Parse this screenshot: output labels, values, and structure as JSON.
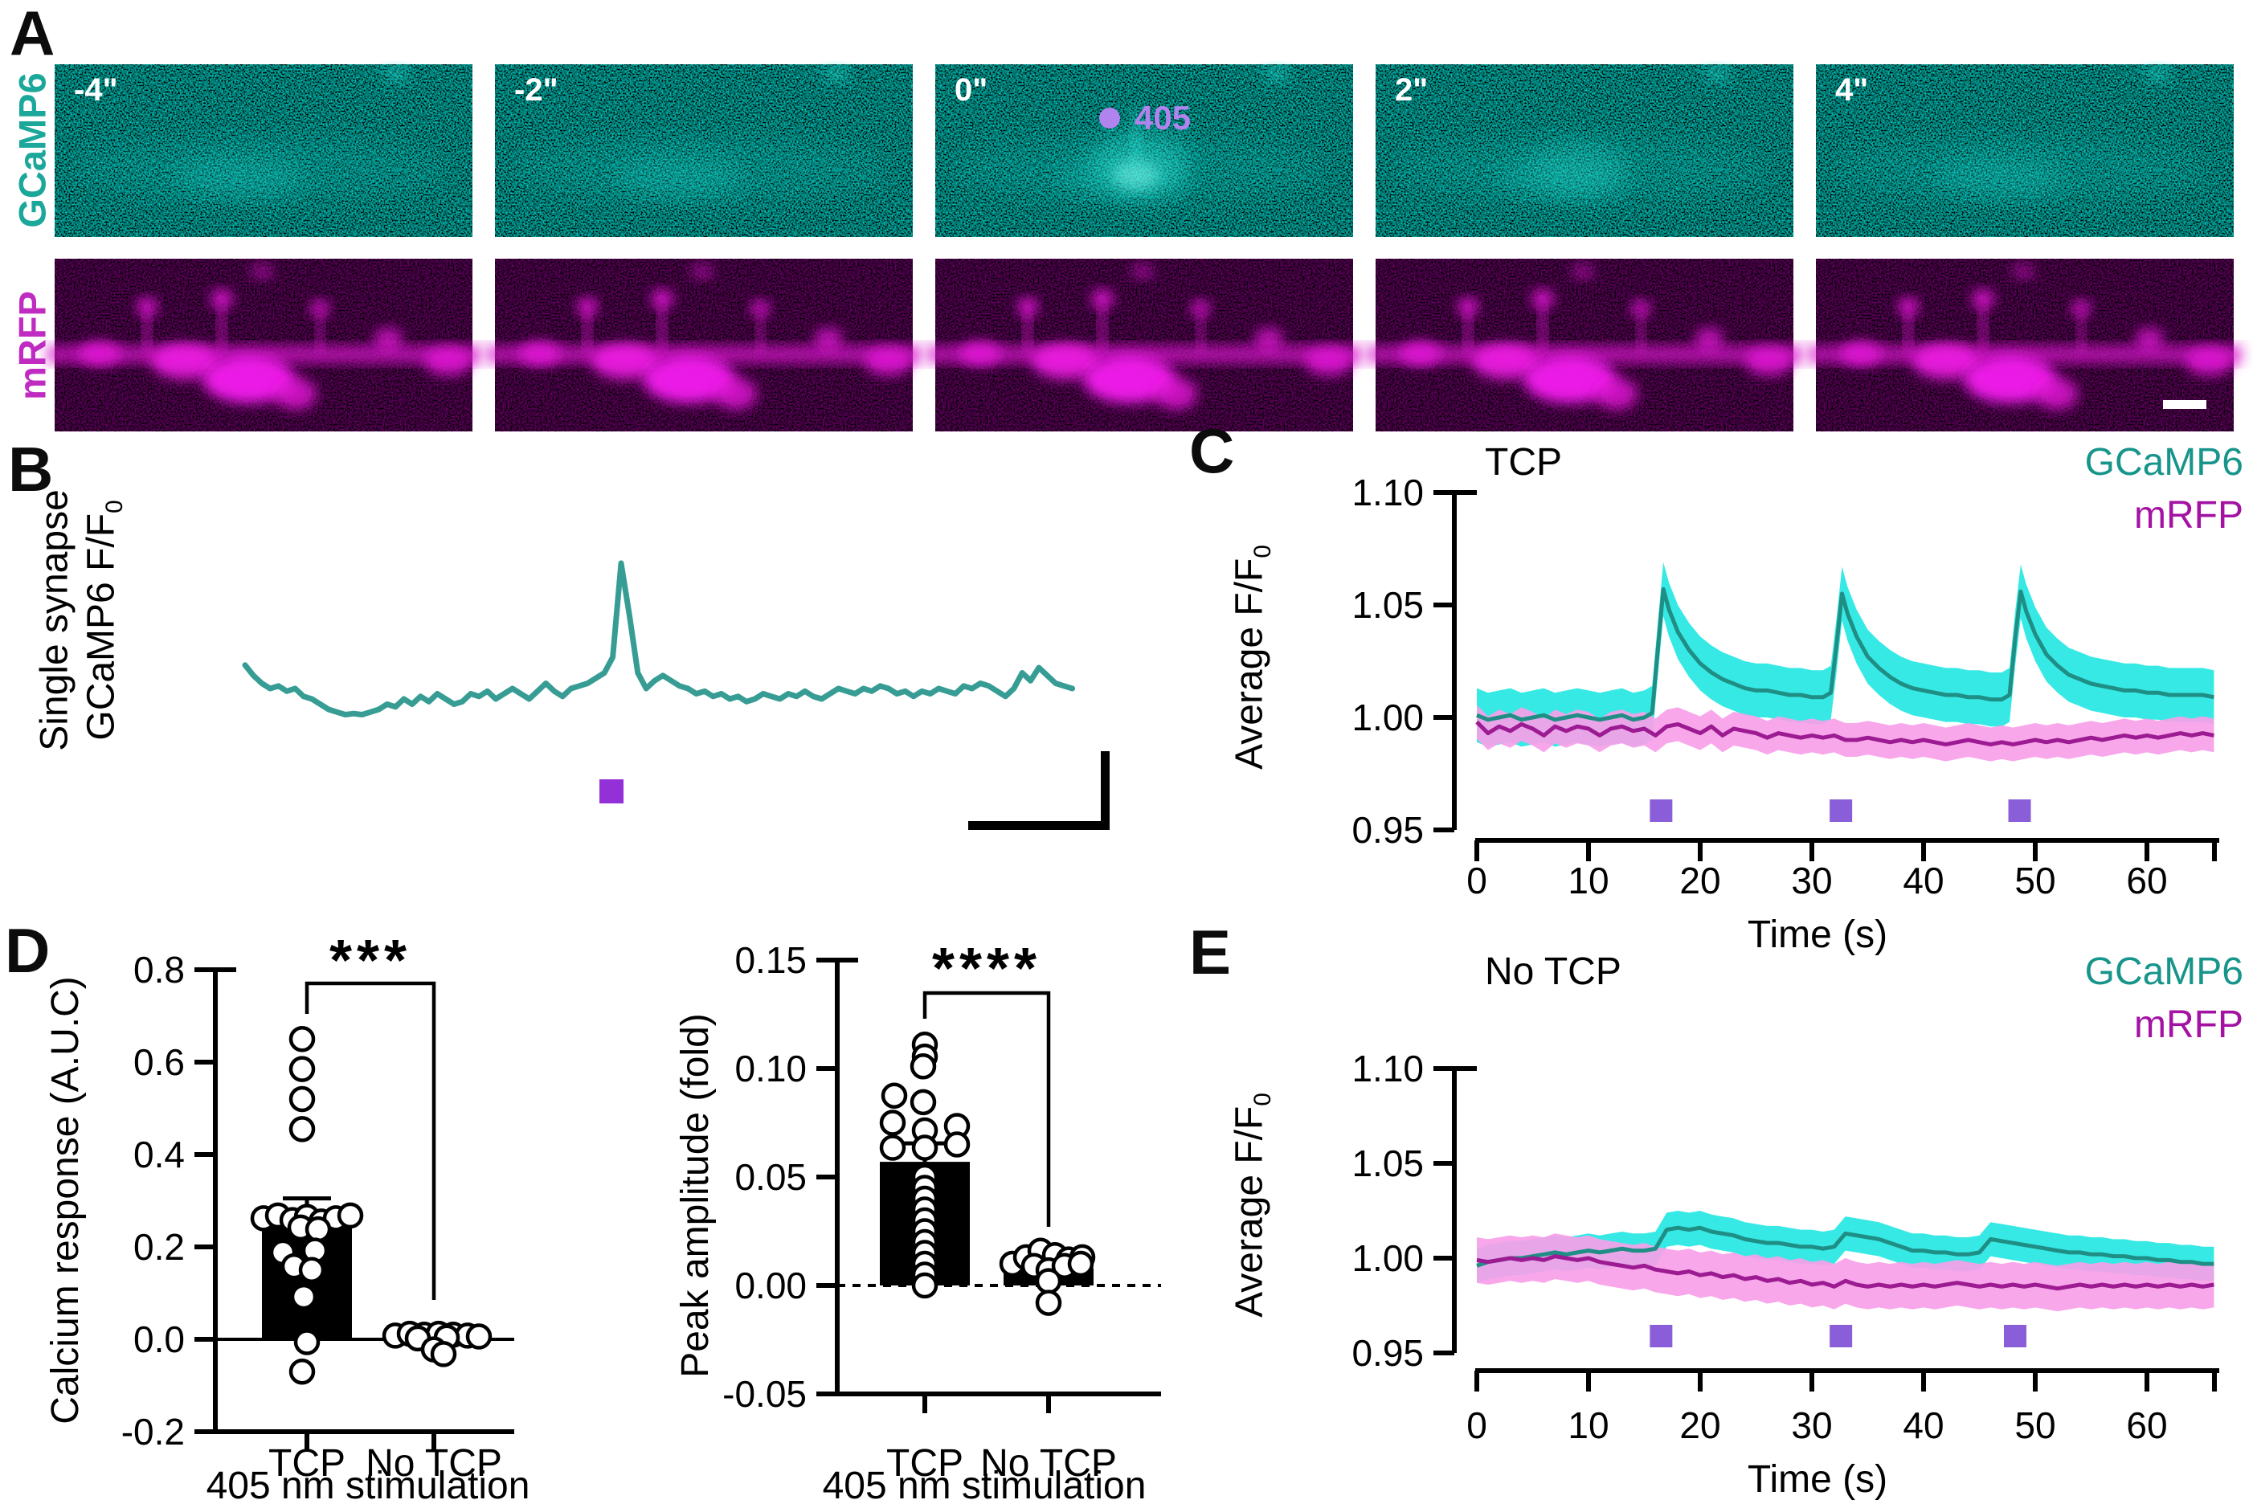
{
  "figure": {
    "panels": {
      "a": {
        "letter": "A",
        "row_labels": [
          {
            "text": "GCaMP6",
            "color": "#1ba79a"
          },
          {
            "text": "mRFP",
            "color": "#c02cc2"
          }
        ],
        "frames": [
          {
            "time": "-4\""
          },
          {
            "time": "-2\""
          },
          {
            "time": "0\""
          },
          {
            "time": "2\""
          },
          {
            "time": "4\""
          }
        ],
        "stim_label": "405"
      },
      "b": {
        "letter": "B",
        "ylabel_line1": "Single synapse",
        "ylabel_line2": "GCaMP6 F/F",
        "ylabel_sub": "0"
      },
      "c": {
        "letter": "C",
        "title": "TCP",
        "legend": [
          {
            "text": "GCaMP6",
            "color": "#17958b"
          },
          {
            "text": "mRFP",
            "color": "#a412a4"
          }
        ],
        "ylabel": "Average F/F",
        "ylabel_sub": "0",
        "xlabel": "Time (s)"
      },
      "d": {
        "letter": "D",
        "significance_left": "***",
        "significance_right": "****",
        "left_ylabel": "Calcium response (A.U.C)",
        "right_ylabel": "Peak amplitude (fold)",
        "left_categories": [
          "TCP",
          "No TCP"
        ],
        "right_categories": [
          "TCP",
          "No TCP"
        ],
        "left_xlabel": "405 nm stimulation",
        "right_xlabel": "405 nm stimulation"
      },
      "e": {
        "letter": "E",
        "title": "No TCP",
        "legend": [
          {
            "text": "GCaMP6",
            "color": "#17958b"
          },
          {
            "text": "mRFP",
            "color": "#a412a4"
          }
        ],
        "ylabel": "Average F/F",
        "ylabel_sub": "0",
        "xlabel": "Time (s)"
      }
    },
    "colors": {
      "teal_line": "#1f8e85",
      "cyan_band": "#26e7e3",
      "magenta_line": "#9c1b92",
      "magenta_band": "#f79fe9",
      "stim_purple": "#8a5ed8",
      "stim_purple_b": "#9330d8",
      "laser_405": "#b183ee"
    }
  },
  "chart_data": [
    {
      "id": "B",
      "type": "line",
      "description": "Single synapse GCaMP6 F/F0 trace, arbitrary scale, photostimulation marker below trace",
      "color": "#379d94",
      "stim_color": "#9330d8",
      "values": [
        1.105,
        1.085,
        1.07,
        1.06,
        1.065,
        1.055,
        1.06,
        1.045,
        1.04,
        1.03,
        1.02,
        1.015,
        1.01,
        1.012,
        1.01,
        1.015,
        1.02,
        1.03,
        1.025,
        1.04,
        1.03,
        1.045,
        1.035,
        1.05,
        1.04,
        1.03,
        1.035,
        1.05,
        1.045,
        1.055,
        1.04,
        1.05,
        1.06,
        1.05,
        1.04,
        1.055,
        1.07,
        1.055,
        1.045,
        1.06,
        1.065,
        1.07,
        1.08,
        1.09,
        1.12,
        1.3,
        1.2,
        1.09,
        1.06,
        1.075,
        1.085,
        1.075,
        1.065,
        1.06,
        1.05,
        1.055,
        1.045,
        1.05,
        1.04,
        1.045,
        1.035,
        1.04,
        1.05,
        1.045,
        1.04,
        1.05,
        1.045,
        1.055,
        1.045,
        1.04,
        1.05,
        1.06,
        1.055,
        1.05,
        1.06,
        1.055,
        1.065,
        1.06,
        1.05,
        1.055,
        1.045,
        1.055,
        1.05,
        1.06,
        1.055,
        1.05,
        1.065,
        1.06,
        1.07,
        1.065,
        1.055,
        1.045,
        1.06,
        1.09,
        1.075,
        1.1,
        1.085,
        1.07,
        1.065,
        1.06
      ]
    },
    {
      "id": "C",
      "type": "line",
      "title": "TCP",
      "xlabel": "Time (s)",
      "ylabel": "Average F/F0",
      "ylim": [
        0.95,
        1.1
      ],
      "yticks": [
        "1.10",
        "1.05",
        "1.00",
        "0.95"
      ],
      "ytick_values": [
        1.1,
        1.05,
        1.0,
        0.95
      ],
      "xticks": [
        "0",
        "10",
        "20",
        "30",
        "40",
        "50",
        "60"
      ],
      "xtick_values": [
        0,
        10,
        20,
        30,
        40,
        50,
        60
      ],
      "legend": [
        "GCaMP6",
        "mRFP"
      ],
      "stim_times": [
        16.5,
        32.6,
        48.6
      ],
      "stim_color": "#8a5ed8",
      "series": [
        {
          "name": "GCaMP6",
          "line_color": "#1f8e85",
          "band_color": "#26e7e3",
          "band": 0.012,
          "x": [
            0,
            1,
            2,
            3,
            4,
            5,
            6,
            7,
            8,
            9,
            10,
            11,
            12,
            13,
            14,
            15,
            15.7,
            16.2,
            16.7,
            17.2,
            18,
            19,
            20,
            21,
            22,
            23,
            24,
            25,
            26,
            27,
            28,
            29,
            30,
            31,
            31.7,
            32.2,
            32.7,
            33.2,
            34,
            35,
            36,
            37,
            38,
            39,
            40,
            41,
            42,
            43,
            44,
            45,
            46,
            47,
            47.7,
            48.2,
            48.7,
            49.2,
            50,
            51,
            52,
            53,
            54,
            55,
            56,
            57,
            58,
            59,
            60,
            61,
            62,
            63,
            64,
            65,
            66
          ],
          "values": [
            1.001,
            0.999,
            1.0,
            1.001,
            0.999,
            1.0,
            1.001,
            0.999,
            1.0,
            1.001,
            1.0,
            0.999,
            1.0,
            1.001,
            0.999,
            1.0,
            1.002,
            1.03,
            1.057,
            1.048,
            1.038,
            1.03,
            1.024,
            1.02,
            1.017,
            1.015,
            1.013,
            1.012,
            1.012,
            1.011,
            1.01,
            1.01,
            1.009,
            1.009,
            1.011,
            1.032,
            1.055,
            1.046,
            1.036,
            1.027,
            1.022,
            1.018,
            1.015,
            1.013,
            1.012,
            1.011,
            1.01,
            1.01,
            1.009,
            1.009,
            1.008,
            1.008,
            1.01,
            1.035,
            1.056,
            1.047,
            1.037,
            1.028,
            1.023,
            1.019,
            1.017,
            1.015,
            1.014,
            1.013,
            1.012,
            1.012,
            1.011,
            1.011,
            1.01,
            1.01,
            1.01,
            1.01,
            1.009
          ]
        },
        {
          "name": "mRFP",
          "line_color": "#9c1b92",
          "band_color": "#f79fe9",
          "band": 0.0075,
          "values": [
            0.998,
            0.993,
            0.996,
            0.994,
            0.997,
            0.995,
            0.992,
            0.996,
            0.994,
            0.996,
            0.995,
            0.992,
            0.995,
            0.996,
            0.994,
            0.995,
            0.992,
            0.996,
            0.997,
            0.995,
            0.993,
            0.996,
            0.992,
            0.995,
            0.994,
            0.993,
            0.991,
            0.993,
            0.992,
            0.991,
            0.992,
            0.991,
            0.992,
            0.99,
            0.99,
            0.991,
            0.99,
            0.989,
            0.99,
            0.989,
            0.99,
            0.989,
            0.988,
            0.989,
            0.99,
            0.989,
            0.988,
            0.989,
            0.988,
            0.989,
            0.99,
            0.989,
            0.99,
            0.989,
            0.99,
            0.991,
            0.99,
            0.991,
            0.992,
            0.991,
            0.992,
            0.991,
            0.992,
            0.993,
            0.992,
            0.993,
            0.992
          ]
        }
      ]
    },
    {
      "id": "E",
      "type": "line",
      "title": "No TCP",
      "xlabel": "Time (s)",
      "ylabel": "Average F/F0",
      "ylim": [
        0.95,
        1.1
      ],
      "yticks": [
        "1.10",
        "1.05",
        "1.00",
        "0.95"
      ],
      "ytick_values": [
        1.1,
        1.05,
        1.0,
        0.95
      ],
      "xticks": [
        "0",
        "10",
        "20",
        "30",
        "40",
        "50",
        "60"
      ],
      "xtick_values": [
        0,
        10,
        20,
        30,
        40,
        50,
        60
      ],
      "legend": [
        "GCaMP6",
        "mRFP"
      ],
      "stim_times": [
        16.5,
        32.6,
        48.2
      ],
      "stim_color": "#8a5ed8",
      "series": [
        {
          "name": "GCaMP6",
          "line_color": "#1f8e85",
          "band_color": "#26e7e3",
          "band": 0.009,
          "values": [
            0.996,
            0.998,
            0.999,
            1.0,
            1.0,
            1.001,
            1.002,
            1.003,
            1.002,
            1.003,
            1.004,
            1.003,
            1.004,
            1.005,
            1.004,
            1.004,
            1.005,
            1.015,
            1.016,
            1.015,
            1.016,
            1.014,
            1.013,
            1.012,
            1.01,
            1.009,
            1.008,
            1.008,
            1.007,
            1.006,
            1.006,
            1.005,
            1.006,
            1.013,
            1.012,
            1.011,
            1.01,
            1.008,
            1.006,
            1.004,
            1.004,
            1.003,
            1.003,
            1.002,
            1.002,
            1.003,
            1.01,
            1.009,
            1.008,
            1.007,
            1.006,
            1.005,
            1.004,
            1.003,
            1.003,
            1.002,
            1.002,
            1.001,
            1.001,
            1.0,
            1.0,
            0.999,
            0.999,
            0.998,
            0.998,
            0.997,
            0.997
          ]
        },
        {
          "name": "mRFP",
          "line_color": "#9c1b92",
          "band_color": "#f79fe9",
          "band": 0.012,
          "values": [
            0.999,
            0.998,
            0.999,
            1.0,
            0.999,
            1.0,
            0.999,
            1.001,
            1.0,
            0.999,
            1.0,
            0.998,
            0.997,
            0.996,
            0.995,
            0.996,
            0.994,
            0.993,
            0.992,
            0.993,
            0.991,
            0.992,
            0.99,
            0.991,
            0.989,
            0.99,
            0.988,
            0.989,
            0.987,
            0.988,
            0.986,
            0.987,
            0.985,
            0.988,
            0.986,
            0.985,
            0.986,
            0.985,
            0.986,
            0.985,
            0.986,
            0.985,
            0.986,
            0.987,
            0.986,
            0.985,
            0.986,
            0.985,
            0.986,
            0.985,
            0.986,
            0.985,
            0.984,
            0.985,
            0.986,
            0.985,
            0.986,
            0.985,
            0.986,
            0.985,
            0.986,
            0.985,
            0.986,
            0.985,
            0.986,
            0.985,
            0.986
          ]
        }
      ]
    },
    {
      "id": "D_left",
      "type": "bar",
      "ylabel": "Calcium response (A.U.C)",
      "xlabel": "405 nm stimulation",
      "categories": [
        "TCP",
        "No TCP"
      ],
      "values": [
        0.265,
        0.004
      ],
      "error_up": [
        0.04,
        0
      ],
      "ylim": [
        -0.2,
        0.8
      ],
      "yticks": [
        "0.8",
        "0.6",
        "0.4",
        "0.2",
        "0.0",
        "-0.2"
      ],
      "ytick_values": [
        0.8,
        0.6,
        0.4,
        0.2,
        0.0,
        -0.2
      ],
      "significance": "***",
      "points": [
        [
          [
            -6,
            0.65
          ],
          [
            -6,
            0.585
          ],
          [
            -6,
            0.52
          ],
          [
            -6,
            0.455
          ],
          [
            -54,
            0.262
          ],
          [
            -36,
            0.268
          ],
          [
            -18,
            0.258
          ],
          [
            0,
            0.265
          ],
          [
            18,
            0.255
          ],
          [
            36,
            0.262
          ],
          [
            54,
            0.268
          ],
          [
            -8,
            0.242
          ],
          [
            14,
            0.238
          ],
          [
            -30,
            0.188
          ],
          [
            10,
            0.192
          ],
          [
            -16,
            0.158
          ],
          [
            6,
            0.15
          ],
          [
            -4,
            0.092
          ],
          [
            0,
            -0.006
          ],
          [
            -6,
            -0.07
          ]
        ],
        [
          [
            -48,
            0.008
          ],
          [
            -30,
            0.012
          ],
          [
            -12,
            0.01
          ],
          [
            6,
            0.012
          ],
          [
            24,
            0.01
          ],
          [
            42,
            0.008
          ],
          [
            56,
            0.006
          ],
          [
            -20,
            0.002
          ],
          [
            16,
            0.004
          ],
          [
            0,
            -0.022
          ],
          [
            12,
            -0.032
          ]
        ]
      ]
    },
    {
      "id": "D_right",
      "type": "bar",
      "ylabel": "Peak amplitude (fold)",
      "xlabel": "405 nm stimulation",
      "categories": [
        "TCP",
        "No TCP"
      ],
      "values": [
        0.057,
        0.008
      ],
      "error_up": [
        0.0085,
        0
      ],
      "ylim": [
        -0.05,
        0.15
      ],
      "yticks": [
        "0.15",
        "0.10",
        "0.05",
        "0.00",
        "-0.05"
      ],
      "ytick_values": [
        0.15,
        0.1,
        0.05,
        0.0,
        -0.05
      ],
      "significance": "****",
      "points": [
        [
          [
            0,
            0.111
          ],
          [
            0,
            0.1055
          ],
          [
            -2,
            0.101
          ],
          [
            -38,
            0.0875
          ],
          [
            -2,
            0.0845
          ],
          [
            -40,
            0.075
          ],
          [
            0,
            0.0715
          ],
          [
            40,
            0.0735
          ],
          [
            -40,
            0.0635
          ],
          [
            0,
            0.0635
          ],
          [
            40,
            0.065
          ],
          [
            0,
            0.05
          ],
          [
            0,
            0.045
          ],
          [
            0,
            0.04
          ],
          [
            0,
            0.035
          ],
          [
            0,
            0.03
          ],
          [
            0,
            0.025
          ],
          [
            0,
            0.02
          ],
          [
            0,
            0.015
          ],
          [
            0,
            0.01
          ],
          [
            0,
            0.005
          ],
          [
            0,
            0.0
          ]
        ],
        [
          [
            -45,
            0.01
          ],
          [
            -28,
            0.013
          ],
          [
            -10,
            0.016
          ],
          [
            8,
            0.014
          ],
          [
            25,
            0.012
          ],
          [
            42,
            0.013
          ],
          [
            -18,
            0.009
          ],
          [
            0,
            0.007
          ],
          [
            20,
            0.009
          ],
          [
            40,
            0.01
          ],
          [
            0,
            0.002
          ],
          [
            0,
            -0.008
          ]
        ]
      ]
    }
  ]
}
